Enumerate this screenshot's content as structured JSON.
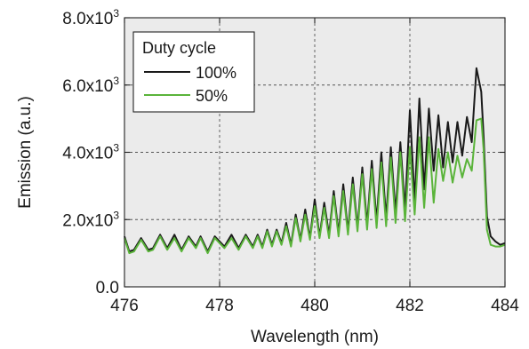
{
  "chart_data": {
    "type": "line",
    "xlabel": "Wavelength (nm)",
    "ylabel": "Emission (a.u.)",
    "xlim": [
      476,
      484
    ],
    "ylim": [
      0,
      8000
    ],
    "x_ticks": [
      476,
      478,
      480,
      482,
      484
    ],
    "y_ticks": [
      {
        "value": 0,
        "mantissa": "0.0",
        "exp": ""
      },
      {
        "value": 2000,
        "mantissa": "2.0x10",
        "exp": "3"
      },
      {
        "value": 4000,
        "mantissa": "4.0x10",
        "exp": "3"
      },
      {
        "value": 6000,
        "mantissa": "6.0x10",
        "exp": "3"
      },
      {
        "value": 8000,
        "mantissa": "8.0x10",
        "exp": "3"
      }
    ],
    "grid": true,
    "background": "#ebebeb",
    "legend": {
      "title": "Duty cycle",
      "placement": "top-left"
    },
    "series": [
      {
        "name": "100%",
        "color": "#1a1a1a",
        "x": [
          476.0,
          476.1,
          476.2,
          476.35,
          476.5,
          476.6,
          476.75,
          476.9,
          477.05,
          477.2,
          477.35,
          477.5,
          477.6,
          477.75,
          477.9,
          478.1,
          478.25,
          478.4,
          478.55,
          478.7,
          478.8,
          478.9,
          479.0,
          479.1,
          479.2,
          479.3,
          479.4,
          479.5,
          479.6,
          479.7,
          479.8,
          479.9,
          480.0,
          480.1,
          480.2,
          480.3,
          480.4,
          480.5,
          480.6,
          480.7,
          480.8,
          480.9,
          481.0,
          481.1,
          481.2,
          481.3,
          481.4,
          481.5,
          481.6,
          481.7,
          481.8,
          481.9,
          482.0,
          482.1,
          482.2,
          482.3,
          482.4,
          482.5,
          482.6,
          482.7,
          482.8,
          482.9,
          483.0,
          483.1,
          483.2,
          483.3,
          483.4,
          483.5,
          483.55,
          483.62,
          483.7,
          483.8,
          483.9,
          484.0
        ],
        "y": [
          1500,
          1050,
          1100,
          1450,
          1100,
          1150,
          1550,
          1150,
          1550,
          1100,
          1500,
          1200,
          1500,
          1050,
          1500,
          1200,
          1550,
          1150,
          1550,
          1200,
          1550,
          1200,
          1700,
          1250,
          1700,
          1300,
          1900,
          1250,
          2150,
          1400,
          2300,
          1450,
          2600,
          1500,
          2500,
          1550,
          2850,
          1600,
          3050,
          1650,
          3250,
          1750,
          3550,
          1850,
          3750,
          1950,
          4000,
          2050,
          4150,
          2200,
          4300,
          2300,
          5250,
          2550,
          5600,
          2900,
          5300,
          3450,
          5100,
          3550,
          4900,
          3700,
          4900,
          3900,
          5050,
          4300,
          6500,
          5800,
          4500,
          2100,
          1500,
          1350,
          1250,
          1300
        ]
      },
      {
        "name": "50%",
        "color": "#5ab43a",
        "x": [
          476.0,
          476.1,
          476.2,
          476.35,
          476.5,
          476.6,
          476.75,
          476.9,
          477.05,
          477.2,
          477.35,
          477.5,
          477.6,
          477.75,
          477.9,
          478.1,
          478.25,
          478.4,
          478.55,
          478.7,
          478.8,
          478.9,
          479.0,
          479.1,
          479.2,
          479.3,
          479.4,
          479.5,
          479.6,
          479.7,
          479.8,
          479.9,
          480.0,
          480.1,
          480.2,
          480.3,
          480.4,
          480.5,
          480.6,
          480.7,
          480.8,
          480.9,
          481.0,
          481.1,
          481.2,
          481.3,
          481.4,
          481.5,
          481.6,
          481.7,
          481.8,
          481.9,
          482.0,
          482.1,
          482.2,
          482.3,
          482.4,
          482.5,
          482.6,
          482.7,
          482.8,
          482.9,
          483.0,
          483.1,
          483.2,
          483.3,
          483.4,
          483.5,
          483.55,
          483.62,
          483.7,
          483.8,
          483.9,
          484.0
        ],
        "y": [
          1450,
          1000,
          1050,
          1400,
          1050,
          1100,
          1500,
          1100,
          1450,
          1050,
          1450,
          1150,
          1450,
          1000,
          1450,
          1150,
          1450,
          1100,
          1500,
          1150,
          1500,
          1150,
          1650,
          1200,
          1650,
          1250,
          1800,
          1200,
          2050,
          1350,
          2150,
          1400,
          2400,
          1450,
          2350,
          1450,
          2700,
          1500,
          2850,
          1550,
          3050,
          1650,
          3350,
          1700,
          3500,
          1750,
          3700,
          1800,
          3850,
          1900,
          4000,
          1950,
          4150,
          2150,
          4450,
          2350,
          4450,
          2500,
          4100,
          3150,
          4000,
          3100,
          3900,
          3250,
          3800,
          3450,
          4950,
          5000,
          4100,
          1700,
          1250,
          1200,
          1200,
          1250
        ]
      }
    ]
  }
}
